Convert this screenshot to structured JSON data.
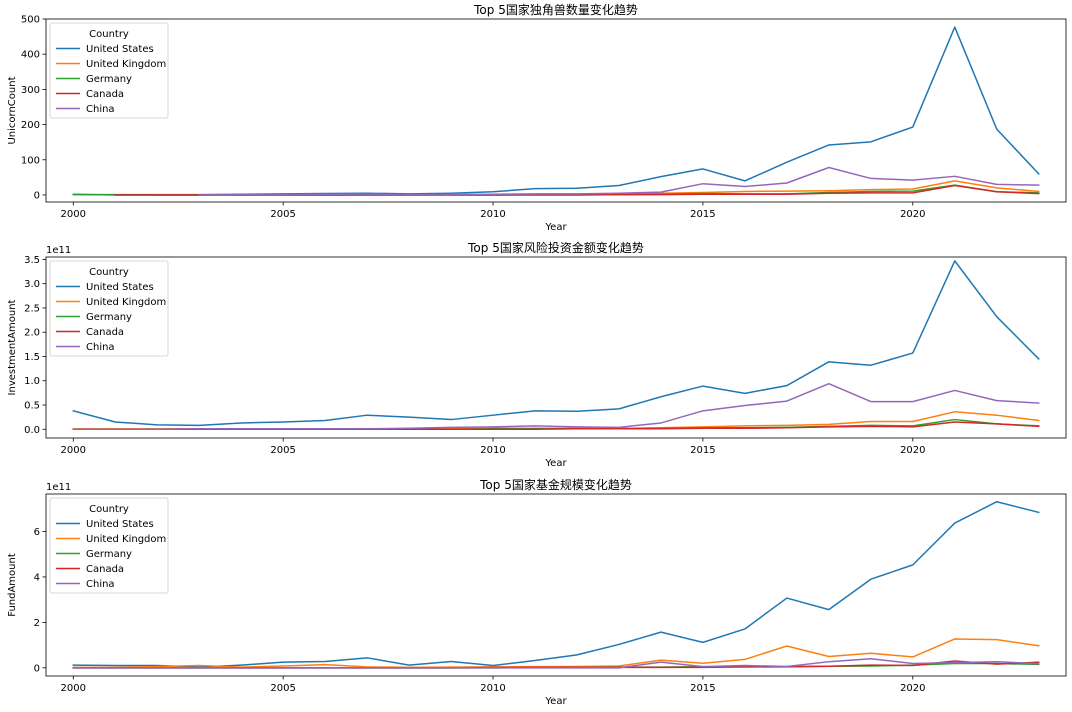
{
  "chart_data": [
    {
      "type": "line",
      "title": "Top 5国家独角兽数量变化趋势",
      "xlabel": "Year",
      "ylabel": "UnicornCount",
      "offset_text": "",
      "xlim": [
        1999.35,
        2023.65
      ],
      "ylim": [
        -20,
        500
      ],
      "xticks": [
        2000,
        2005,
        2010,
        2015,
        2020
      ],
      "yticks": [
        0,
        100,
        200,
        300,
        400,
        500
      ],
      "ytick_labels": [
        "0",
        "100",
        "200",
        "300",
        "400",
        "500"
      ],
      "legend_title": "Country",
      "legend_position": "top-left",
      "grid": false,
      "series": [
        {
          "name": "United States",
          "color": "#1f77b4",
          "x": [
            2000,
            2001,
            2002,
            2003,
            2004,
            2005,
            2006,
            2007,
            2008,
            2009,
            2010,
            2011,
            2012,
            2013,
            2014,
            2015,
            2016,
            2017,
            2018,
            2019,
            2020,
            2021,
            2022,
            2023
          ],
          "y": [
            1,
            1,
            1,
            1,
            2,
            3,
            4,
            5,
            3,
            5,
            9,
            18,
            19,
            27,
            52,
            74,
            40,
            93,
            142,
            151,
            193,
            477,
            187,
            60
          ]
        },
        {
          "name": "United Kingdom",
          "color": "#ff7f0e",
          "x": [
            2002,
            2003,
            2004,
            2005,
            2006,
            2007,
            2008,
            2009,
            2010,
            2011,
            2012,
            2013,
            2014,
            2015,
            2016,
            2017,
            2018,
            2019,
            2020,
            2021,
            2022,
            2023
          ],
          "y": [
            0,
            0,
            0,
            0,
            0,
            1,
            0,
            1,
            1,
            2,
            2,
            3,
            5,
            7,
            10,
            11,
            12,
            15,
            17,
            40,
            20,
            10
          ]
        },
        {
          "name": "Germany",
          "color": "#2ca02c",
          "x": [
            2000,
            2001,
            2002,
            2003,
            2004,
            2005,
            2006,
            2007,
            2008,
            2009,
            2010,
            2011,
            2012,
            2013,
            2014,
            2015,
            2016,
            2017,
            2018,
            2019,
            2020,
            2021,
            2022,
            2023
          ],
          "y": [
            2,
            0,
            0,
            0,
            0,
            0,
            0,
            0,
            0,
            0,
            0,
            1,
            1,
            1,
            2,
            4,
            3,
            3,
            7,
            10,
            11,
            28,
            9,
            6
          ]
        },
        {
          "name": "Canada",
          "color": "#d62728",
          "x": [
            2001,
            2002,
            2003,
            2004,
            2005,
            2006,
            2007,
            2008,
            2009,
            2010,
            2011,
            2012,
            2013,
            2014,
            2015,
            2016,
            2017,
            2018,
            2019,
            2020,
            2021,
            2022,
            2023
          ],
          "y": [
            0,
            0,
            0,
            0,
            0,
            0,
            0,
            0,
            0,
            0,
            0,
            0,
            1,
            1,
            2,
            2,
            2,
            5,
            6,
            6,
            27,
            9,
            4
          ]
        },
        {
          "name": "China",
          "color": "#9467bd",
          "x": [
            2003,
            2004,
            2005,
            2006,
            2007,
            2008,
            2009,
            2010,
            2011,
            2012,
            2013,
            2014,
            2015,
            2016,
            2017,
            2018,
            2019,
            2020,
            2021,
            2022,
            2023
          ],
          "y": [
            0,
            1,
            1,
            2,
            2,
            1,
            1,
            2,
            3,
            3,
            5,
            8,
            32,
            24,
            34,
            78,
            47,
            42,
            53,
            30,
            28
          ]
        }
      ]
    },
    {
      "type": "line",
      "title": "Top 5国家风险投资金额变化趋势",
      "xlabel": "Year",
      "ylabel": "InvestmentAmount",
      "offset_text": "1e11",
      "xlim": [
        1999.35,
        2023.65
      ],
      "ylim": [
        -0.18,
        3.55
      ],
      "xticks": [
        2000,
        2005,
        2010,
        2015,
        2020
      ],
      "yticks": [
        0,
        0.5,
        1.0,
        1.5,
        2.0,
        2.5,
        3.0,
        3.5
      ],
      "ytick_labels": [
        "0.0",
        "0.5",
        "1.0",
        "1.5",
        "2.0",
        "2.5",
        "3.0",
        "3.5"
      ],
      "legend_title": "Country",
      "legend_position": "top-left",
      "grid": false,
      "series": [
        {
          "name": "United States",
          "color": "#1f77b4",
          "x": [
            2000,
            2001,
            2002,
            2003,
            2004,
            2005,
            2006,
            2007,
            2008,
            2009,
            2010,
            2011,
            2012,
            2013,
            2014,
            2015,
            2016,
            2017,
            2018,
            2019,
            2020,
            2021,
            2022,
            2023
          ],
          "y": [
            0.38,
            0.15,
            0.09,
            0.08,
            0.13,
            0.15,
            0.18,
            0.29,
            0.25,
            0.2,
            0.29,
            0.38,
            0.37,
            0.42,
            0.67,
            0.89,
            0.74,
            0.9,
            1.39,
            1.32,
            1.57,
            3.47,
            2.32,
            1.45
          ]
        },
        {
          "name": "United Kingdom",
          "color": "#ff7f0e",
          "x": [
            2000,
            2001,
            2002,
            2003,
            2004,
            2005,
            2006,
            2007,
            2008,
            2009,
            2010,
            2011,
            2012,
            2013,
            2014,
            2015,
            2016,
            2017,
            2018,
            2019,
            2020,
            2021,
            2022,
            2023
          ],
          "y": [
            0.01,
            0.01,
            0.01,
            0.01,
            0.01,
            0.01,
            0.01,
            0.01,
            0.01,
            0.01,
            0.02,
            0.02,
            0.02,
            0.02,
            0.03,
            0.05,
            0.07,
            0.08,
            0.1,
            0.16,
            0.16,
            0.36,
            0.29,
            0.18
          ]
        },
        {
          "name": "Germany",
          "color": "#2ca02c",
          "x": [
            2000,
            2001,
            2002,
            2003,
            2004,
            2005,
            2006,
            2007,
            2008,
            2009,
            2010,
            2011,
            2012,
            2013,
            2014,
            2015,
            2016,
            2017,
            2018,
            2019,
            2020,
            2021,
            2022,
            2023
          ],
          "y": [
            0.0,
            0.0,
            0.0,
            0.0,
            0.0,
            0.0,
            0.0,
            0.0,
            0.0,
            0.0,
            0.01,
            0.01,
            0.01,
            0.01,
            0.02,
            0.03,
            0.03,
            0.04,
            0.06,
            0.08,
            0.07,
            0.2,
            0.11,
            0.07
          ]
        },
        {
          "name": "Canada",
          "color": "#d62728",
          "x": [
            2000,
            2001,
            2002,
            2003,
            2004,
            2005,
            2006,
            2007,
            2008,
            2009,
            2010,
            2011,
            2012,
            2013,
            2014,
            2015,
            2016,
            2017,
            2018,
            2019,
            2020,
            2021,
            2022,
            2023
          ],
          "y": [
            0.0,
            0.0,
            0.0,
            0.0,
            0.0,
            0.0,
            0.0,
            0.0,
            0.0,
            0.0,
            0.0,
            0.0,
            0.01,
            0.01,
            0.01,
            0.02,
            0.02,
            0.03,
            0.05,
            0.06,
            0.05,
            0.15,
            0.11,
            0.06
          ]
        },
        {
          "name": "China",
          "color": "#9467bd",
          "x": [
            2000,
            2001,
            2002,
            2003,
            2004,
            2005,
            2006,
            2007,
            2008,
            2009,
            2010,
            2011,
            2012,
            2013,
            2014,
            2015,
            2016,
            2017,
            2018,
            2019,
            2020,
            2021,
            2022,
            2023
          ],
          "y": [
            0.0,
            0.0,
            0.0,
            0.01,
            0.01,
            0.01,
            0.01,
            0.01,
            0.02,
            0.04,
            0.05,
            0.07,
            0.05,
            0.04,
            0.13,
            0.38,
            0.49,
            0.58,
            0.94,
            0.57,
            0.57,
            0.8,
            0.59,
            0.54
          ]
        }
      ]
    },
    {
      "type": "line",
      "title": "Top 5国家基金规模变化趋势",
      "xlabel": "Year",
      "ylabel": "FundAmount",
      "offset_text": "1e11",
      "xlim": [
        1999.35,
        2023.65
      ],
      "ylim": [
        -0.36,
        7.65
      ],
      "xticks": [
        2000,
        2005,
        2010,
        2015,
        2020
      ],
      "yticks": [
        0,
        2,
        4,
        6
      ],
      "ytick_labels": [
        "0",
        "2",
        "4",
        "6"
      ],
      "legend_title": "Country",
      "legend_position": "top-left",
      "grid": false,
      "series": [
        {
          "name": "United States",
          "color": "#1f77b4",
          "x": [
            2000,
            2001,
            2002,
            2003,
            2004,
            2005,
            2006,
            2007,
            2008,
            2009,
            2010,
            2011,
            2012,
            2013,
            2014,
            2015,
            2016,
            2017,
            2018,
            2019,
            2020,
            2021,
            2022,
            2023
          ],
          "y": [
            0.12,
            0.1,
            0.1,
            0.03,
            0.12,
            0.25,
            0.28,
            0.44,
            0.12,
            0.28,
            0.1,
            0.32,
            0.57,
            1.03,
            1.57,
            1.12,
            1.71,
            3.07,
            2.56,
            3.9,
            4.53,
            6.37,
            7.31,
            6.84
          ]
        },
        {
          "name": "United Kingdom",
          "color": "#ff7f0e",
          "x": [
            2000,
            2001,
            2002,
            2003,
            2004,
            2005,
            2006,
            2007,
            2008,
            2009,
            2010,
            2011,
            2012,
            2013,
            2014,
            2015,
            2016,
            2017,
            2018,
            2019,
            2020,
            2021,
            2022,
            2023
          ],
          "y": [
            0.02,
            0.02,
            0.05,
            0.1,
            0.03,
            0.08,
            0.14,
            0.04,
            0.02,
            0.03,
            0.04,
            0.05,
            0.06,
            0.08,
            0.34,
            0.2,
            0.37,
            0.96,
            0.5,
            0.64,
            0.48,
            1.27,
            1.24,
            0.97
          ]
        },
        {
          "name": "Germany",
          "color": "#2ca02c",
          "x": [
            2000,
            2001,
            2002,
            2003,
            2004,
            2005,
            2006,
            2007,
            2008,
            2009,
            2010,
            2011,
            2012,
            2013,
            2014,
            2015,
            2016,
            2017,
            2018,
            2019,
            2020,
            2021,
            2022,
            2023
          ],
          "y": [
            0.0,
            0.0,
            0.0,
            0.0,
            0.0,
            0.0,
            0.0,
            0.0,
            0.0,
            0.0,
            0.0,
            0.01,
            0.02,
            0.03,
            0.03,
            0.05,
            0.04,
            0.04,
            0.07,
            0.08,
            0.12,
            0.19,
            0.19,
            0.15
          ]
        },
        {
          "name": "Canada",
          "color": "#d62728",
          "x": [
            2000,
            2001,
            2002,
            2003,
            2004,
            2005,
            2006,
            2007,
            2008,
            2009,
            2010,
            2011,
            2012,
            2013,
            2014,
            2015,
            2016,
            2017,
            2018,
            2019,
            2020,
            2021,
            2022,
            2023
          ],
          "y": [
            0.0,
            0.0,
            0.0,
            0.0,
            0.0,
            0.0,
            0.0,
            0.0,
            0.0,
            0.0,
            0.02,
            0.02,
            0.02,
            0.02,
            0.02,
            0.02,
            0.04,
            0.05,
            0.07,
            0.12,
            0.1,
            0.3,
            0.16,
            0.25
          ]
        },
        {
          "name": "China",
          "color": "#9467bd",
          "x": [
            2000,
            2001,
            2002,
            2003,
            2004,
            2005,
            2006,
            2007,
            2008,
            2009,
            2010,
            2011,
            2012,
            2013,
            2014,
            2015,
            2016,
            2017,
            2018,
            2019,
            2020,
            2021,
            2022,
            2023
          ],
          "y": [
            0.0,
            0.0,
            0.0,
            0.0,
            0.0,
            0.0,
            0.0,
            0.0,
            0.0,
            0.0,
            0.0,
            0.0,
            0.0,
            0.0,
            0.25,
            0.05,
            0.1,
            0.06,
            0.27,
            0.4,
            0.19,
            0.23,
            0.27,
            0.18
          ]
        }
      ]
    }
  ]
}
